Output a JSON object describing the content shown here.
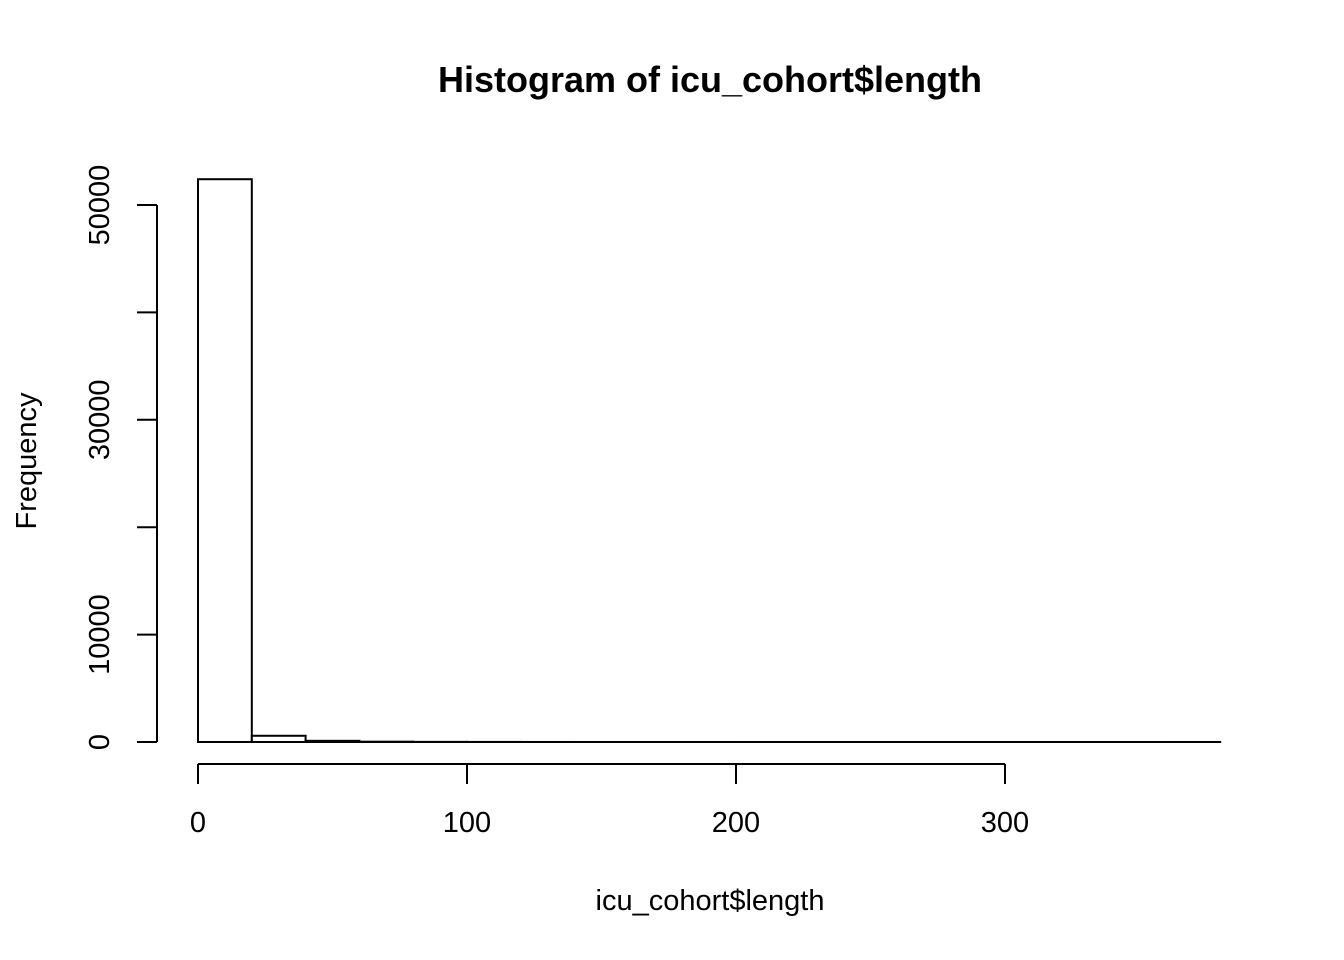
{
  "chart_data": {
    "type": "bar",
    "title": "Histogram of icu_cohort$length",
    "xlabel": "icu_cohort$length",
    "ylabel": "Frequency",
    "bin_width": 20,
    "bins": [
      {
        "x0": 0,
        "x1": 20,
        "count": 52400
      },
      {
        "x0": 20,
        "x1": 40,
        "count": 580
      },
      {
        "x0": 40,
        "x1": 60,
        "count": 110
      },
      {
        "x0": 60,
        "x1": 80,
        "count": 30
      },
      {
        "x0": 80,
        "x1": 100,
        "count": 12
      },
      {
        "x0": 100,
        "x1": 120,
        "count": 6
      },
      {
        "x0": 120,
        "x1": 140,
        "count": 3
      },
      {
        "x0": 140,
        "x1": 160,
        "count": 2
      },
      {
        "x0": 160,
        "x1": 180,
        "count": 1
      },
      {
        "x0": 180,
        "x1": 200,
        "count": 1
      },
      {
        "x0": 200,
        "x1": 220,
        "count": 0
      },
      {
        "x0": 220,
        "x1": 240,
        "count": 0
      },
      {
        "x0": 240,
        "x1": 260,
        "count": 0
      },
      {
        "x0": 260,
        "x1": 280,
        "count": 0
      },
      {
        "x0": 280,
        "x1": 300,
        "count": 0
      },
      {
        "x0": 300,
        "x1": 320,
        "count": 0
      },
      {
        "x0": 320,
        "x1": 340,
        "count": 0
      },
      {
        "x0": 340,
        "x1": 360,
        "count": 0
      },
      {
        "x0": 360,
        "x1": 380,
        "count": 1
      }
    ],
    "x_ticks": [
      "0",
      "100",
      "200",
      "300"
    ],
    "y_ticks": [
      "0",
      "10000",
      "30000",
      "50000"
    ],
    "y_minor_ticks": [
      20000,
      40000
    ],
    "xlim": [
      0,
      380
    ],
    "ylim": [
      0,
      50000
    ],
    "grid": false
  }
}
